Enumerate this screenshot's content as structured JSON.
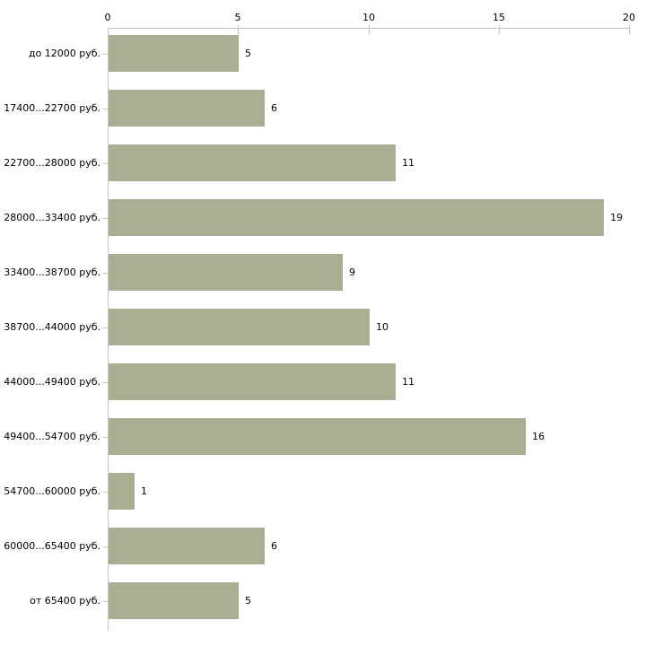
{
  "chart_data": {
    "type": "bar",
    "orientation": "horizontal",
    "title": "",
    "xlabel": "",
    "ylabel": "",
    "categories": [
      "до 12000 руб.",
      "17400...22700 руб.",
      "22700...28000 руб.",
      "28000...33400 руб.",
      "33400...38700 руб.",
      "38700...44000 руб.",
      "44000...49400 руб.",
      "49400...54700 руб.",
      "54700...60000 руб.",
      "60000...65400 руб.",
      "от 65400 руб."
    ],
    "values": [
      5,
      6,
      11,
      19,
      9,
      10,
      11,
      16,
      1,
      6,
      5
    ],
    "x_ticks": [
      "0",
      "5",
      "10",
      "15",
      "20"
    ],
    "xlim": [
      0,
      20
    ],
    "grid": false,
    "legend": false,
    "value_labels_shown": true,
    "axis_position": "top",
    "bar_color": "#aaae93",
    "axis_line_color": "#c2c2bb",
    "tick_mark_color": "#c2c49c",
    "text_color": "#000000",
    "background_color": "#ffffff"
  }
}
